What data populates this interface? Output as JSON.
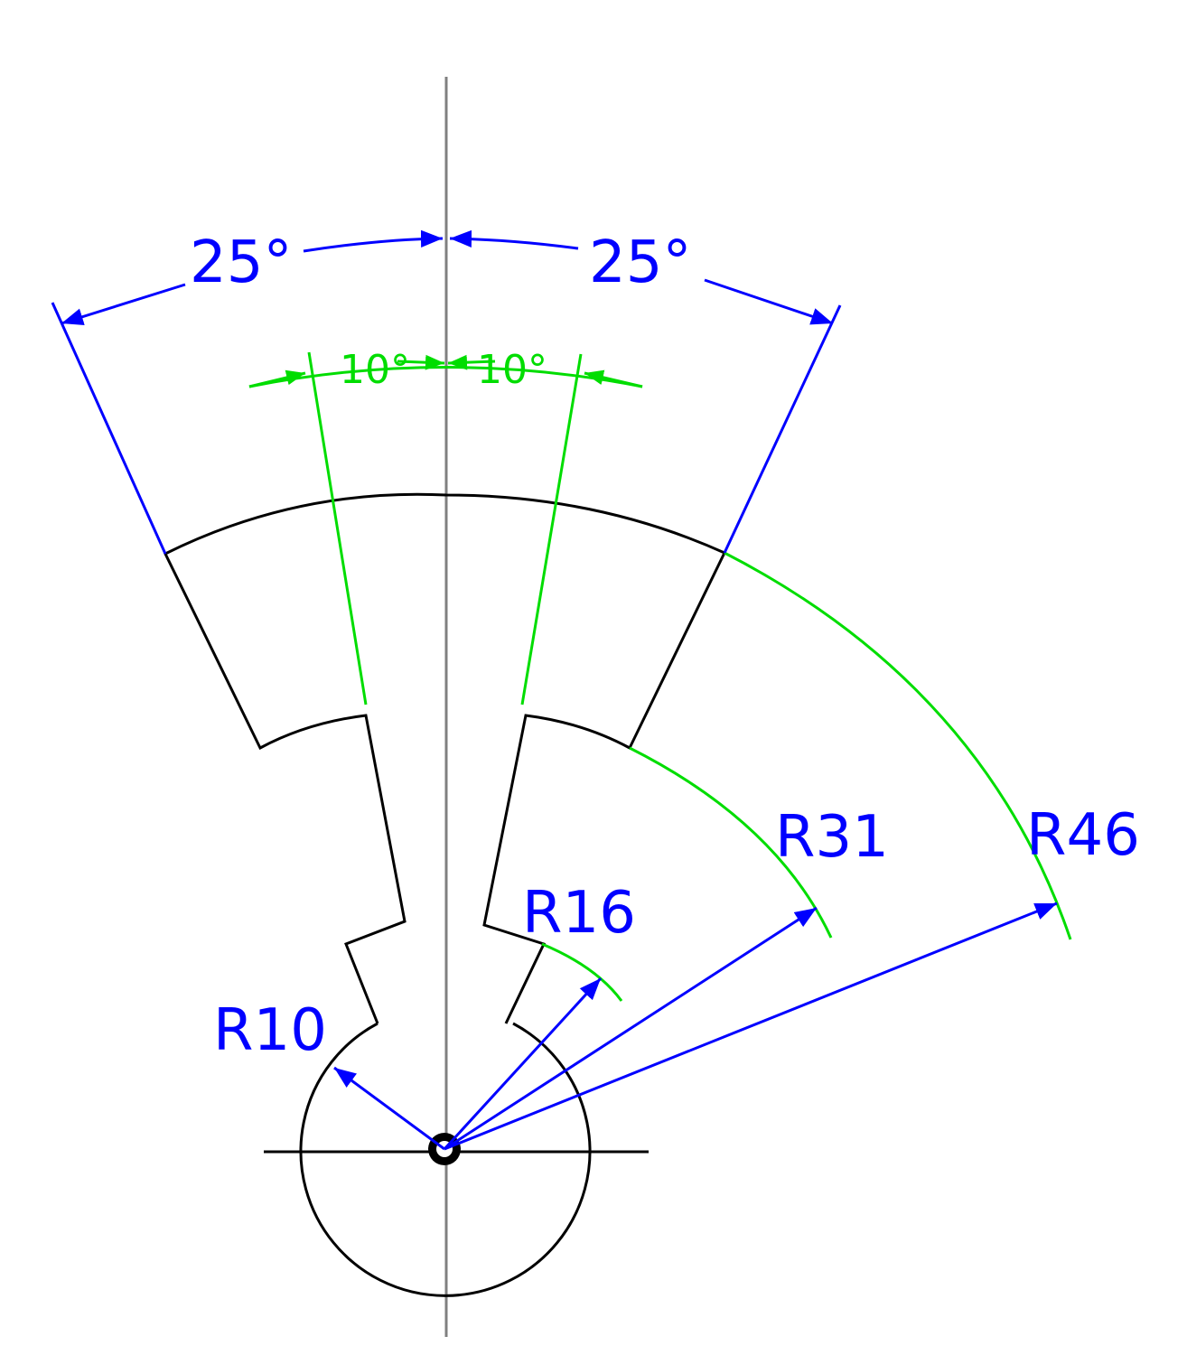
{
  "dimensions": {
    "angle_outer_left": "25°",
    "angle_outer_right": "25°",
    "angle_inner_left": "10°",
    "angle_inner_right": "10°",
    "radius_10": "R10",
    "radius_16": "R16",
    "radius_31": "R31",
    "radius_46": "R46"
  },
  "colors": {
    "outline": "#000000",
    "dimension": "#0000ff",
    "construction": "#00dd00",
    "centerline": "#808080"
  }
}
